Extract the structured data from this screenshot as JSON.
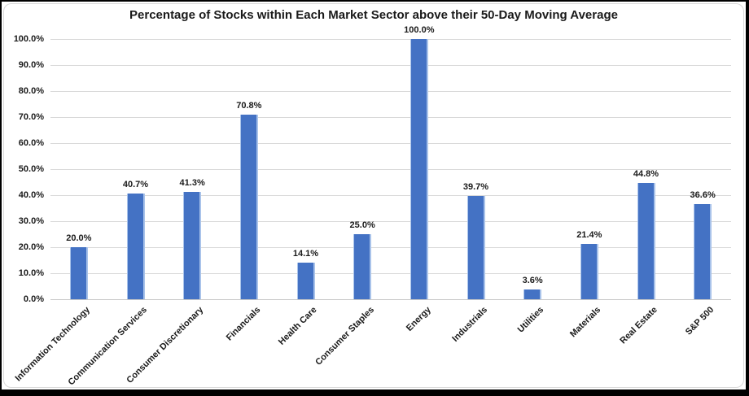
{
  "chart_data": {
    "type": "bar",
    "title": "Percentage of Stocks within Each Market Sector above their 50-Day Moving Average",
    "categories": [
      "Information Technology",
      "Communication Services",
      "Consumer Discretionary",
      "Financials",
      "Health Care",
      "Consumer Staples",
      "Energy",
      "Industrials",
      "Utilities",
      "Materials",
      "Real Estate",
      "S&P 500"
    ],
    "values": [
      20.0,
      40.7,
      41.3,
      70.8,
      14.1,
      25.0,
      100.0,
      39.7,
      3.6,
      21.4,
      44.8,
      36.6
    ],
    "value_labels": [
      "20.0%",
      "40.7%",
      "41.3%",
      "70.8%",
      "14.1%",
      "25.0%",
      "100.0%",
      "39.7%",
      "3.6%",
      "21.4%",
      "44.8%",
      "36.6%"
    ],
    "ytick_labels": [
      "100.0%",
      "90.0%",
      "80.0%",
      "70.0%",
      "60.0%",
      "50.0%",
      "40.0%",
      "30.0%",
      "20.0%",
      "10.0%",
      "0.0%"
    ],
    "ylim": [
      0,
      100
    ],
    "ytick_step": 10,
    "grid": true,
    "legend": "none",
    "xlabel": "",
    "ylabel": "",
    "colors": {
      "bar_fill": "#4472C4",
      "bar_edge": "#A9C3EA",
      "gridline": "#D9D9D9",
      "axis_line": "#C8C8C8",
      "text": "#1A1A1A",
      "frame_border": "#000000",
      "chart_area_border": "#D9D9D9",
      "background": "#FFFFFF"
    }
  }
}
